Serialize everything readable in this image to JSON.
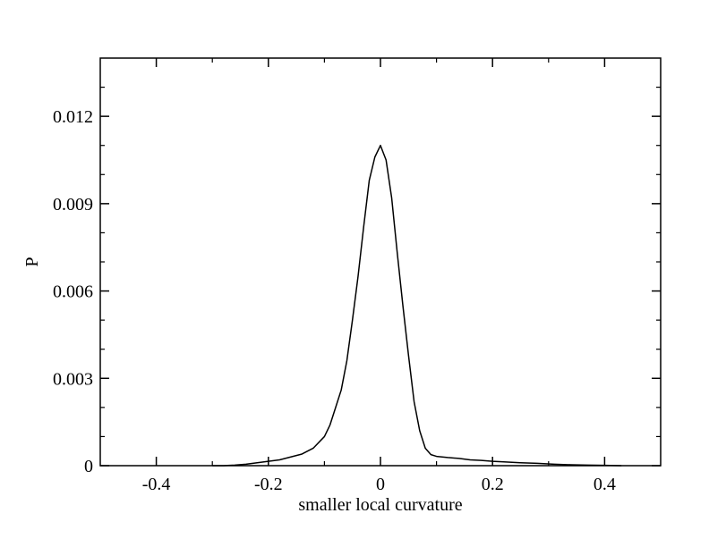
{
  "chart_data": {
    "type": "line",
    "title": "",
    "xlabel": "smaller local curvature",
    "ylabel": "P",
    "xlim": [
      -0.5,
      0.5
    ],
    "ylim": [
      0,
      0.014
    ],
    "xticks": [
      -0.4,
      -0.2,
      0,
      0.2,
      0.4
    ],
    "xtick_labels": [
      "-0.4",
      "-0.2",
      "0",
      "0.2",
      "0.4"
    ],
    "yticks": [
      0,
      0.003,
      0.006,
      0.009,
      0.012
    ],
    "ytick_labels": [
      "0",
      "0.003",
      "0.006",
      "0.009",
      "0.012"
    ],
    "grid": false,
    "legend": "none",
    "line_color": "#000000",
    "series": [
      {
        "x": [
          -0.3,
          -0.28,
          -0.26,
          -0.24,
          -0.22,
          -0.2,
          -0.18,
          -0.16,
          -0.14,
          -0.12,
          -0.1,
          -0.09,
          -0.08,
          -0.07,
          -0.06,
          -0.05,
          -0.04,
          -0.03,
          -0.02,
          -0.01,
          0.0,
          0.01,
          0.02,
          0.03,
          0.04,
          0.05,
          0.06,
          0.07,
          0.08,
          0.09,
          0.1,
          0.12,
          0.14,
          0.16,
          0.18,
          0.2,
          0.22,
          0.25,
          0.28,
          0.31,
          0.34,
          0.37,
          0.4,
          0.43
        ],
        "values": [
          0.0,
          0.0,
          2e-05,
          5e-05,
          0.0001,
          0.00015,
          0.0002,
          0.0003,
          0.0004,
          0.0006,
          0.001,
          0.0014,
          0.002,
          0.0026,
          0.0036,
          0.005,
          0.0065,
          0.0082,
          0.0098,
          0.0106,
          0.011,
          0.0105,
          0.0092,
          0.0073,
          0.0055,
          0.0038,
          0.0022,
          0.0012,
          0.0006,
          0.00038,
          0.00032,
          0.00028,
          0.00025,
          0.0002,
          0.00018,
          0.00015,
          0.00013,
          0.0001,
          8e-05,
          5e-05,
          3e-05,
          2e-05,
          1e-05,
          0.0
        ]
      }
    ]
  }
}
